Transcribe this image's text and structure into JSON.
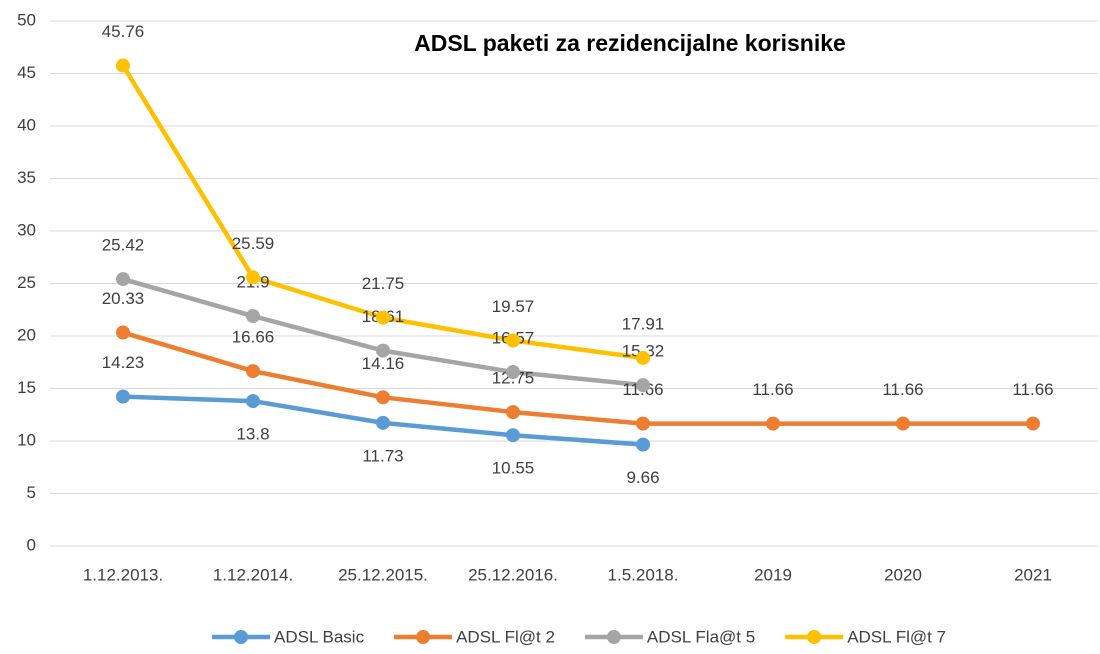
{
  "chart_data": {
    "type": "line",
    "title": "ADSL paketi za rezidencijalne korisnike",
    "categories": [
      "1.12.2013.",
      "1.12.2014.",
      "25.12.2015.",
      "25.12.2016.",
      "1.5.2018.",
      "2019",
      "2020",
      "2021"
    ],
    "series": [
      {
        "name": "ADSL Basic",
        "color": "#5b9bd5",
        "values": [
          14.23,
          13.8,
          11.73,
          10.55,
          9.66,
          null,
          null,
          null
        ]
      },
      {
        "name": "ADSL Fl@t 2",
        "color": "#ed7d31",
        "values": [
          20.33,
          16.66,
          14.16,
          12.75,
          11.66,
          11.66,
          11.66,
          11.66
        ]
      },
      {
        "name": "ADSL Fla@t 5",
        "color": "#a5a5a5",
        "values": [
          25.42,
          21.9,
          18.61,
          16.57,
          15.32,
          null,
          null,
          null
        ]
      },
      {
        "name": "ADSL Fl@t 7",
        "color": "#ffc000",
        "values": [
          45.76,
          25.59,
          21.75,
          19.57,
          17.91,
          null,
          null,
          null
        ]
      }
    ],
    "ylim": [
      0,
      50
    ],
    "yticks": [
      0,
      5,
      10,
      15,
      20,
      25,
      30,
      35,
      40,
      45,
      50
    ],
    "grid": true,
    "legend": "bottom"
  }
}
